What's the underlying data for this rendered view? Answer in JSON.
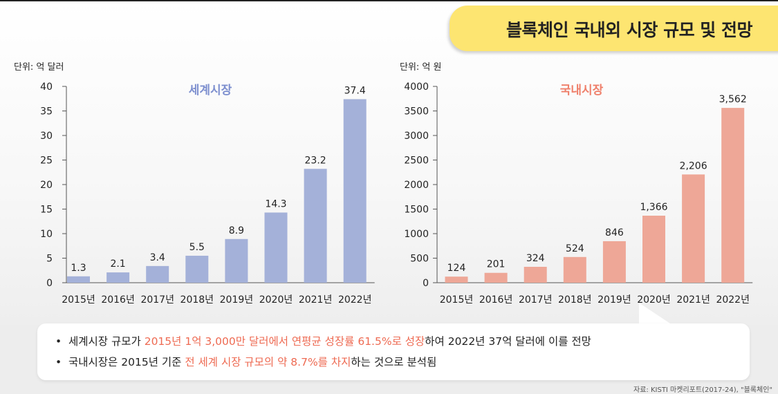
{
  "page_title": "블록체인 국내외 시장 규모 및 전망",
  "chart_data": [
    {
      "type": "bar",
      "title": "세계시장",
      "unit_label": "단위: 억 달러",
      "categories": [
        "2015년",
        "2016년",
        "2017년",
        "2018년",
        "2019년",
        "2020년",
        "2021년",
        "2022년"
      ],
      "values": [
        1.3,
        2.1,
        3.4,
        5.5,
        8.9,
        14.3,
        23.2,
        37.4
      ],
      "value_labels": [
        "1.3",
        "2.1",
        "3.4",
        "5.5",
        "8.9",
        "14.3",
        "23.2",
        "37.4"
      ],
      "yticks": [
        "0",
        "5",
        "10",
        "15",
        "20",
        "25",
        "30",
        "35",
        "40"
      ],
      "ylim": [
        0,
        40
      ],
      "color": "#a4b1d9",
      "title_color": "#7d8fcf",
      "grid": false
    },
    {
      "type": "bar",
      "title": "국내시장",
      "unit_label": "단위: 억 원",
      "categories": [
        "2015년",
        "2016년",
        "2017년",
        "2018년",
        "2019년",
        "2020년",
        "2021년",
        "2022년"
      ],
      "values": [
        124,
        201,
        324,
        524,
        846,
        1366,
        2206,
        3562
      ],
      "value_labels": [
        "124",
        "201",
        "324",
        "524",
        "846",
        "1,366",
        "2,206",
        "3,562"
      ],
      "yticks": [
        "0",
        "500",
        "1000",
        "1500",
        "2000",
        "2500",
        "3000",
        "3500",
        "4000"
      ],
      "ylim": [
        0,
        4000
      ],
      "color": "#eea797",
      "title_color": "#ef7f6a",
      "grid": false
    }
  ],
  "notes": [
    {
      "bullet": "•",
      "before": "세계시장 규모가 ",
      "highlight": "2015년 1억 3,000만 달러에서 연평균 성장률 61.5%로 성장",
      "after": "하여 2022년 37억 달러에 이를 전망"
    },
    {
      "bullet": "•",
      "before": "국내시장은 2015년 기준 ",
      "highlight": "전 세계 시장 규모의 약 8.7%를 차지",
      "after": "하는 것으로 분석됨"
    }
  ],
  "source": "자료: KISTI 마켓리포트(2017-24), \"블록체인\"",
  "colors": {
    "highlight": "#ee6a52",
    "tab": "#fde571"
  }
}
